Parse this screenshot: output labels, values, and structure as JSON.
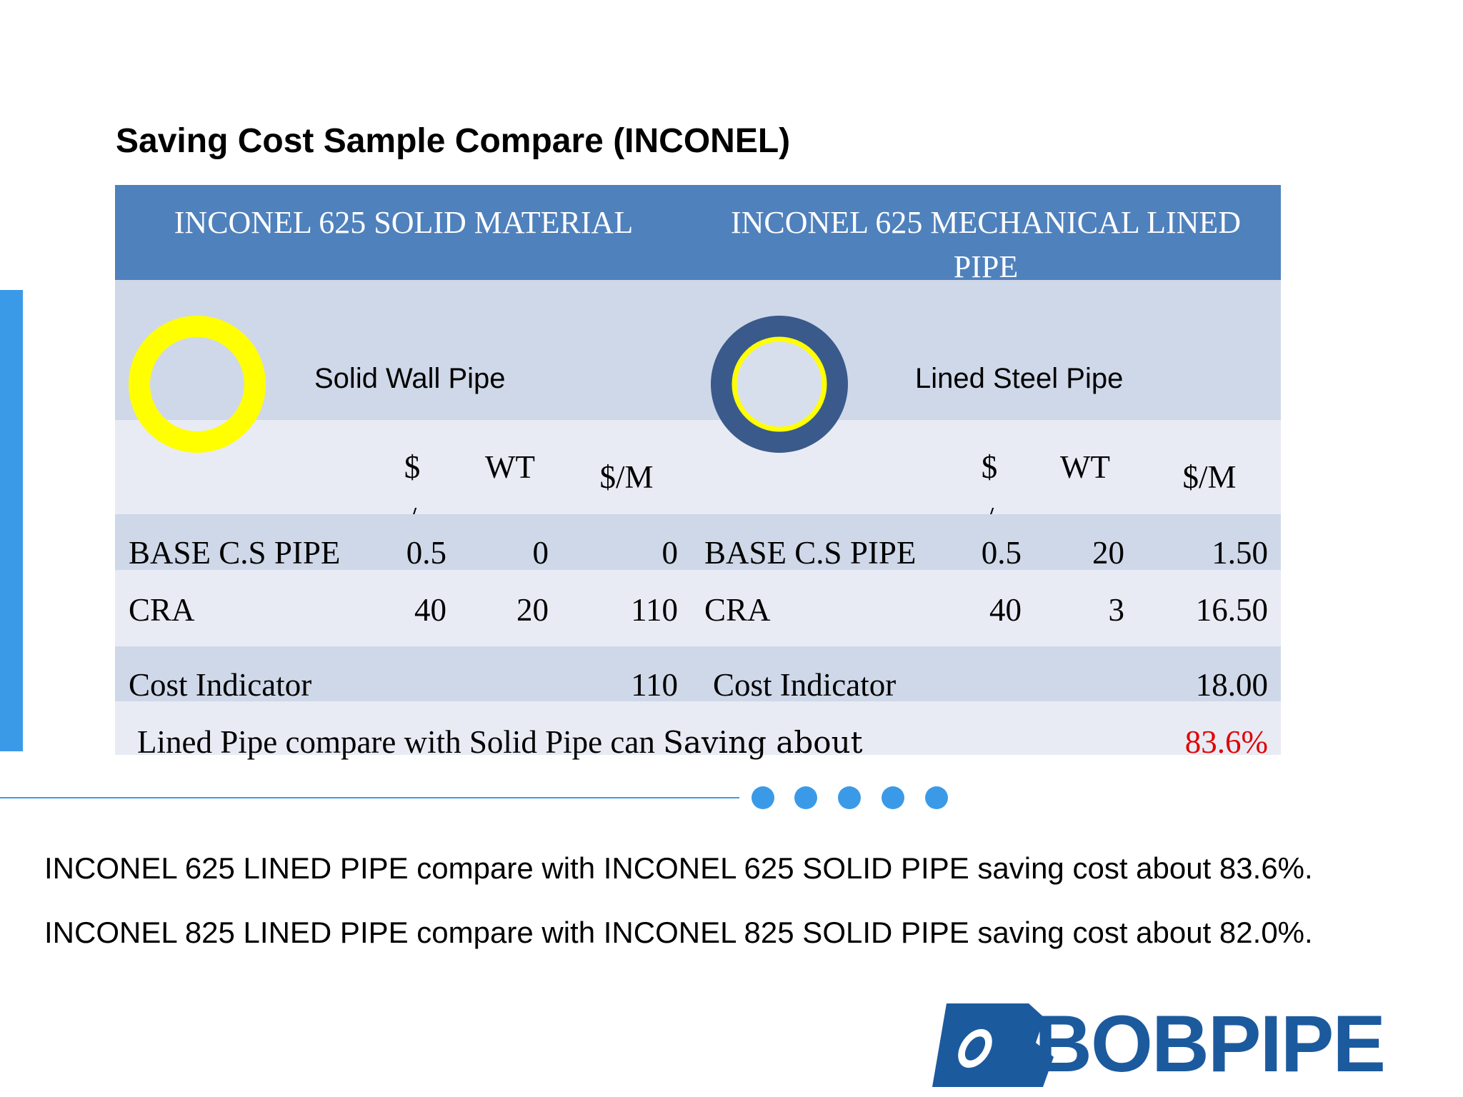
{
  "title": "Saving Cost Sample Compare (INCONEL)",
  "table": {
    "headers": [
      "INCONEL 625 SOLID MATERIAL",
      "INCONEL 625 MECHANICAL LINED PIPE"
    ],
    "image_labels": [
      "Solid Wall Pipe",
      "Lined Steel Pipe"
    ],
    "units": [
      "$ /MT",
      "WT",
      "$/M"
    ],
    "rows": [
      [
        "BASE C.S PIPE",
        "0.5",
        "0",
        "0",
        "BASE C.S PIPE",
        "0.5",
        "20",
        "1.50"
      ],
      [
        "CRA",
        "40",
        "20",
        "110",
        "CRA",
        "40",
        "3",
        "16.50"
      ],
      [
        "Cost Indicator",
        "110",
        "Cost Indicator",
        "18.00"
      ]
    ],
    "saving": {
      "text": "Lined Pipe compare with Solid Pipe can",
      "emphasis": "Saving about",
      "value": "83.6%"
    }
  },
  "notes": [
    "INCONEL 625 LINED PIPE compare with INCONEL 625 SOLID PIPE saving cost about 83.6%.",
    "INCONEL 825 LINED PIPE compare with INCONEL 825 SOLID PIPE saving cost about 82.0%."
  ],
  "logo": "BOBPIPE"
}
